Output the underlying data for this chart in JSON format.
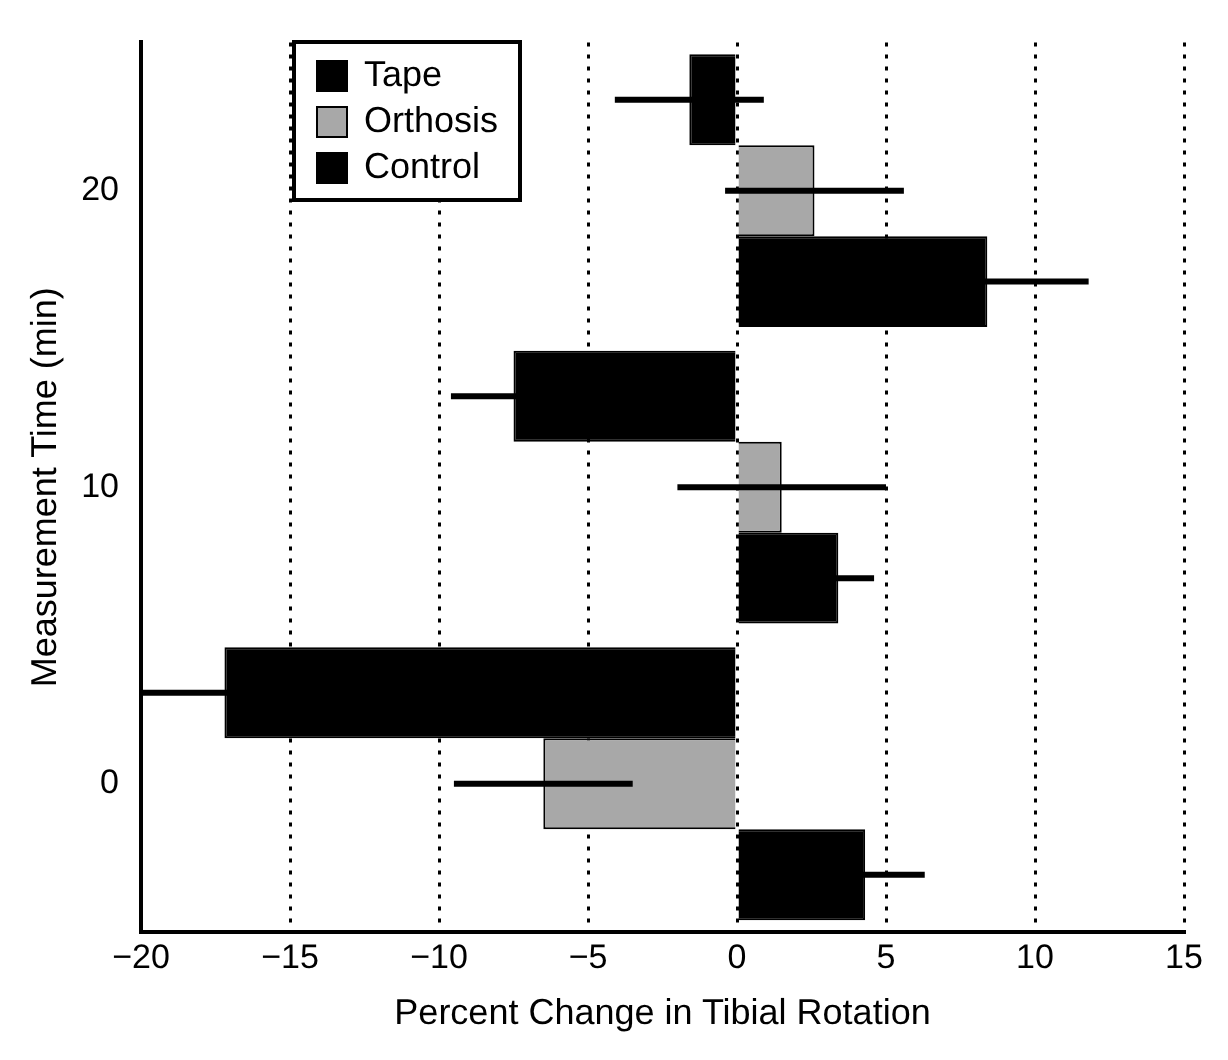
{
  "chart_data": {
    "type": "bar",
    "orientation": "horizontal",
    "xlabel": "Percent Change in Tibial Rotation",
    "ylabel": "Measurement Time (min)",
    "categories": [
      "20",
      "10",
      "0"
    ],
    "xlim": [
      -20,
      15
    ],
    "xticks": [
      -20,
      -15,
      -10,
      -5,
      0,
      5,
      10,
      15
    ],
    "grid": "x",
    "legend": "top left",
    "series": [
      {
        "name": "Tape",
        "color": "#000000",
        "values": [
          -1.6,
          -7.5,
          -17.2
        ],
        "errors": [
          2.5,
          2.1,
          2.8
        ]
      },
      {
        "name": "Orthosis",
        "color": "#a8a8a8",
        "values": [
          2.6,
          1.5,
          -6.5
        ],
        "errors": [
          3.0,
          3.5,
          3.0
        ]
      },
      {
        "name": "Control",
        "color": "#000000",
        "values": [
          8.4,
          3.4,
          4.3
        ],
        "errors": [
          3.4,
          1.2,
          2.0
        ]
      }
    ]
  }
}
